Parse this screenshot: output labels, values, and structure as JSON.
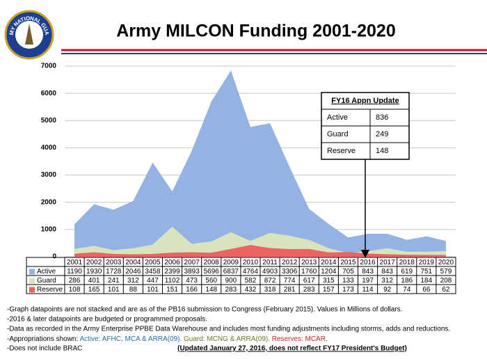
{
  "header": {
    "title": "Army MILCON Funding 2001-2020",
    "logo_text": "ARMY NATIONAL GUARD"
  },
  "chart_data": {
    "type": "area",
    "categories": [
      "2001",
      "2002",
      "2003",
      "2004",
      "2005",
      "2006",
      "2007",
      "2008",
      "2009",
      "2010",
      "2011",
      "2012",
      "2013",
      "2014",
      "2015",
      "2016",
      "2017",
      "2018",
      "2019",
      "2020"
    ],
    "series": [
      {
        "name": "Active",
        "color": "#95b3e2",
        "values": [
          1190,
          1930,
          1728,
          2046,
          3458,
          2399,
          3893,
          5696,
          6837,
          4764,
          4903,
          3306,
          1760,
          1204,
          705,
          843,
          843,
          619,
          751,
          579
        ]
      },
      {
        "name": "Guard",
        "color": "#d8e4bc",
        "values": [
          286,
          401,
          241,
          312,
          447,
          1102,
          473,
          560,
          900,
          582,
          872,
          774,
          617,
          315,
          133,
          197,
          312,
          186,
          184,
          208
        ]
      },
      {
        "name": "Reserve",
        "color": "#f0625f",
        "values": [
          108,
          165,
          101,
          88,
          101,
          151,
          166,
          148,
          283,
          432,
          318,
          281,
          283,
          157,
          173,
          114,
          92,
          74,
          66,
          62
        ]
      }
    ],
    "ylim": [
      0,
      7000
    ],
    "yticks": [
      0,
      1000,
      2000,
      3000,
      4000,
      5000,
      6000,
      7000
    ],
    "grid": true
  },
  "inset": {
    "title": "FY16 Appn Update",
    "rows": [
      [
        "Active",
        836
      ],
      [
        "Guard",
        249
      ],
      [
        "Reserve",
        148
      ]
    ]
  },
  "notes": {
    "lines": [
      "-Graph datapoints are not stacked and are as of the PB16 submission to Congress (February 2015).   Values in Millions of dollars.",
      "-2016 & later datapoints are budgeted or programmed proposals.",
      "-Data as recorded in the Army Enterprise PPBE Data Warehouse and includes most funding adjustments including storms, adds and reductions."
    ],
    "appropriations": [
      {
        "text": "-Appropriations shown: ",
        "color": "#000000"
      },
      {
        "text": "Active: AFHC, MCA & ARRA(09).",
        "color": "#1f6fb5"
      },
      {
        "text": "  Guard: MCNG & ARRA(09).",
        "color": "#6b7a1f"
      },
      {
        "text": "  Reserves: MCAR.",
        "color": "#d0202a"
      }
    ],
    "brac": "-Does not include BRAC",
    "updated": "(Updated January 27, 2016, does not reflect FY17 President's Budget)"
  }
}
